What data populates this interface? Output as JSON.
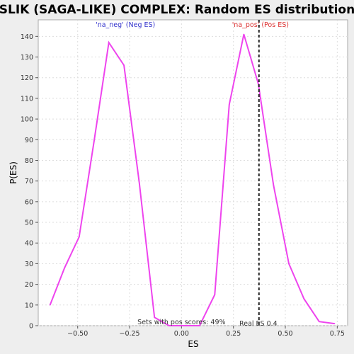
{
  "chart_data": {
    "type": "line",
    "title": "SLIK (SAGA-LIKE) COMPLEX: Random ES distribution",
    "xlabel": "ES",
    "ylabel": "P(ES)",
    "xlim": [
      -0.69,
      0.8
    ],
    "ylim": [
      0,
      148
    ],
    "xticks": [
      -0.5,
      -0.25,
      0.0,
      0.25,
      0.5,
      0.75
    ],
    "xtick_labels": [
      "−0.50",
      "−0.25",
      "0.00",
      "0.25",
      "0.50",
      "0.75"
    ],
    "yticks": [
      0,
      10,
      20,
      30,
      40,
      50,
      60,
      70,
      80,
      90,
      100,
      110,
      120,
      130,
      140
    ],
    "grid": true,
    "series": [
      {
        "color": "#ee44ee",
        "x": [
          -0.633,
          -0.563,
          -0.493,
          -0.42,
          -0.35,
          -0.277,
          -0.203,
          -0.13,
          -0.06,
          0.01,
          0.087,
          0.16,
          0.23,
          0.3,
          0.37,
          0.443,
          0.517,
          0.59,
          0.663,
          0.737
        ],
        "y": [
          10,
          28,
          43,
          90,
          137,
          126,
          69,
          4,
          0,
          0,
          0,
          15,
          107,
          141,
          117,
          68,
          30,
          13,
          2,
          1
        ]
      }
    ],
    "annotations": [
      {
        "text": "'na_neg' (Neg ES)",
        "x": -0.27,
        "color": "#3333cc"
      },
      {
        "text": "'na_pos' (Pos ES)",
        "x": 0.38,
        "color": "#dd3333"
      },
      {
        "text": "Sets with pos scores: 49%",
        "x": 0.0
      },
      {
        "text": "Real ES 0.4",
        "x": 0.37
      }
    ],
    "vline": {
      "x": 0.373,
      "style": "dashed",
      "color": "#222222"
    }
  }
}
